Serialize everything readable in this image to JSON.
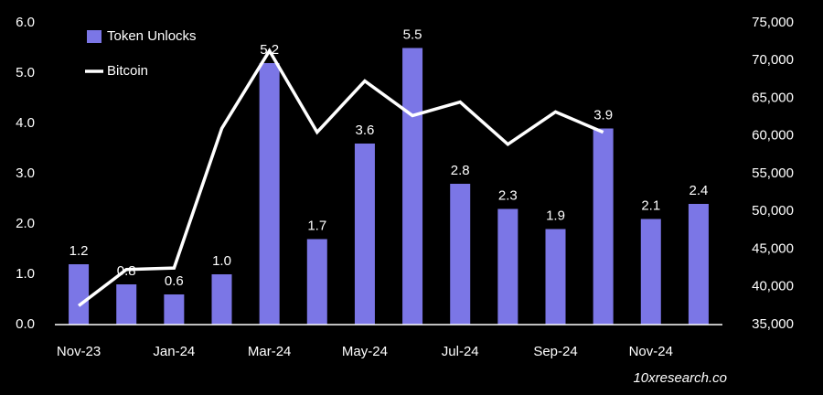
{
  "chart_data": {
    "type": "bar",
    "categories": [
      "Nov-23",
      null,
      "Jan-24",
      null,
      "Mar-24",
      null,
      "May-24",
      null,
      "Jul-24",
      null,
      "Sep-24",
      null,
      "Nov-24",
      null
    ],
    "series": [
      {
        "name": "Token Unlocks",
        "type": "bar",
        "color": "#7b76e6",
        "values": [
          1.2,
          0.8,
          0.6,
          1.0,
          5.2,
          1.7,
          3.6,
          5.5,
          2.8,
          2.3,
          1.9,
          3.9,
          2.1,
          2.4
        ],
        "value_labels": [
          "1.2",
          "0.8",
          "0.6",
          "1.0",
          "5.2",
          "1.7",
          "3.6",
          "5.5",
          "2.8",
          "2.3",
          "1.9",
          "3.9",
          "2.1",
          "2.4"
        ]
      },
      {
        "name": "Bitcoin",
        "type": "line",
        "color": "#ffffff",
        "axis": "y2",
        "values": [
          37500,
          42300,
          42500,
          61000,
          71300,
          60500,
          67300,
          62700,
          64500,
          58900,
          63200,
          60500,
          null,
          null
        ]
      }
    ],
    "ylim": [
      0,
      6
    ],
    "yticks": [
      {
        "value": 0,
        "label": "0.0"
      },
      {
        "value": 1,
        "label": "1.0"
      },
      {
        "value": 2,
        "label": "2.0"
      },
      {
        "value": 3,
        "label": "3.0"
      },
      {
        "value": 4,
        "label": "4.0"
      },
      {
        "value": 5,
        "label": "5.0"
      },
      {
        "value": 6,
        "label": "6.0"
      }
    ],
    "y2lim": [
      35000,
      75000
    ],
    "y2ticks": [
      {
        "value": 35000,
        "label": "35,000"
      },
      {
        "value": 40000,
        "label": "40,000"
      },
      {
        "value": 45000,
        "label": "45,000"
      },
      {
        "value": 50000,
        "label": "50,000"
      },
      {
        "value": 55000,
        "label": "55,000"
      },
      {
        "value": 60000,
        "label": "60,000"
      },
      {
        "value": 65000,
        "label": "65,000"
      },
      {
        "value": 70000,
        "label": "70,000"
      },
      {
        "value": 75000,
        "label": "75,000"
      }
    ],
    "legend": "top-left",
    "annotations": [
      "10xresearch.co"
    ]
  }
}
